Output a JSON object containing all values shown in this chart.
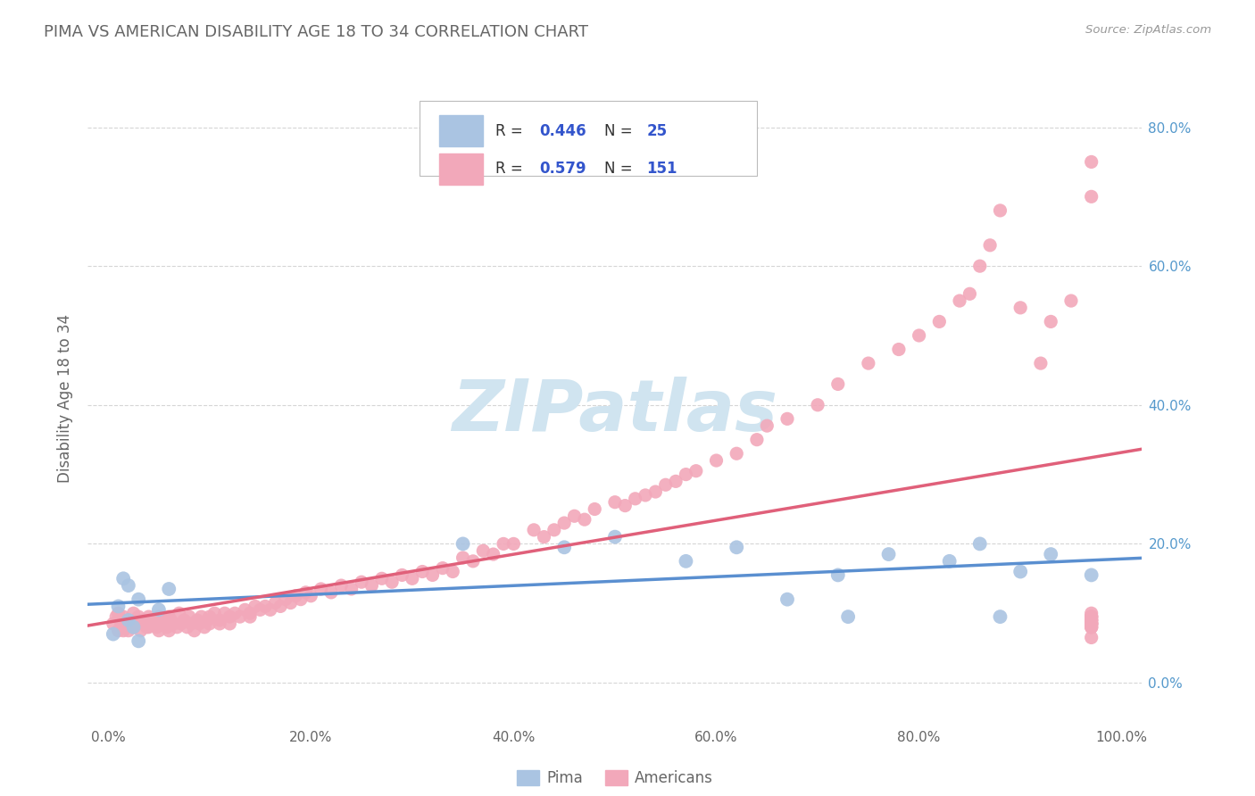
{
  "title": "PIMA VS AMERICAN DISABILITY AGE 18 TO 34 CORRELATION CHART",
  "source": "Source: ZipAtlas.com",
  "ylabel": "Disability Age 18 to 34",
  "xlim": [
    -0.02,
    1.02
  ],
  "ylim": [
    -0.06,
    0.88
  ],
  "ytick_vals": [
    0.0,
    0.2,
    0.4,
    0.6,
    0.8
  ],
  "xtick_vals": [
    0.0,
    0.2,
    0.4,
    0.6,
    0.8,
    1.0
  ],
  "pima_R": 0.446,
  "pima_N": 25,
  "american_R": 0.579,
  "american_N": 151,
  "pima_color": "#aac4e2",
  "american_color": "#f2a8ba",
  "pima_line_color": "#5a8fd0",
  "american_line_color": "#e0607a",
  "background_color": "#ffffff",
  "grid_color": "#cccccc",
  "title_color": "#666666",
  "label_color": "#666666",
  "right_tick_color": "#5599cc",
  "legend_text_color": "#333333",
  "legend_R_N_color": "#3355cc",
  "watermark": "ZIPatlas",
  "watermark_color": "#d0e4f0",
  "pima_x": [
    0.01,
    0.02,
    0.025,
    0.03,
    0.015,
    0.005,
    0.02,
    0.05,
    0.03,
    0.06,
    0.35,
    0.5,
    0.45,
    0.57,
    0.62,
    0.67,
    0.72,
    0.77,
    0.86,
    0.88,
    0.9,
    0.83,
    0.73,
    0.93,
    0.97
  ],
  "pima_y": [
    0.11,
    0.14,
    0.08,
    0.12,
    0.15,
    0.07,
    0.09,
    0.105,
    0.06,
    0.135,
    0.2,
    0.21,
    0.195,
    0.175,
    0.195,
    0.12,
    0.155,
    0.185,
    0.2,
    0.095,
    0.16,
    0.175,
    0.095,
    0.185,
    0.155
  ],
  "american_x": [
    0.005,
    0.008,
    0.01,
    0.01,
    0.012,
    0.013,
    0.015,
    0.015,
    0.018,
    0.02,
    0.02,
    0.022,
    0.025,
    0.025,
    0.028,
    0.03,
    0.03,
    0.032,
    0.035,
    0.035,
    0.038,
    0.04,
    0.04,
    0.042,
    0.045,
    0.048,
    0.05,
    0.05,
    0.052,
    0.055,
    0.055,
    0.058,
    0.06,
    0.06,
    0.062,
    0.065,
    0.068,
    0.07,
    0.072,
    0.075,
    0.078,
    0.08,
    0.082,
    0.085,
    0.088,
    0.09,
    0.092,
    0.095,
    0.098,
    0.1,
    0.1,
    0.105,
    0.11,
    0.11,
    0.115,
    0.12,
    0.12,
    0.125,
    0.13,
    0.135,
    0.14,
    0.14,
    0.145,
    0.15,
    0.155,
    0.16,
    0.165,
    0.17,
    0.175,
    0.18,
    0.185,
    0.19,
    0.195,
    0.2,
    0.21,
    0.22,
    0.23,
    0.24,
    0.25,
    0.26,
    0.27,
    0.28,
    0.29,
    0.3,
    0.31,
    0.32,
    0.33,
    0.34,
    0.35,
    0.36,
    0.37,
    0.38,
    0.39,
    0.4,
    0.42,
    0.43,
    0.44,
    0.45,
    0.46,
    0.47,
    0.48,
    0.5,
    0.51,
    0.52,
    0.53,
    0.54,
    0.55,
    0.56,
    0.57,
    0.58,
    0.6,
    0.62,
    0.64,
    0.65,
    0.67,
    0.7,
    0.72,
    0.75,
    0.78,
    0.8,
    0.82,
    0.84,
    0.85,
    0.86,
    0.87,
    0.88,
    0.9,
    0.92,
    0.93,
    0.95,
    0.97,
    0.97,
    0.97,
    0.97,
    0.97,
    0.97,
    0.97,
    0.97,
    0.97,
    0.97,
    0.97,
    0.97,
    0.97,
    0.97,
    0.97,
    0.97,
    0.97,
    0.97,
    0.97,
    0.97,
    0.97
  ],
  "american_y": [
    0.085,
    0.095,
    0.1,
    0.075,
    0.09,
    0.085,
    0.095,
    0.075,
    0.08,
    0.09,
    0.075,
    0.085,
    0.1,
    0.08,
    0.09,
    0.085,
    0.095,
    0.075,
    0.09,
    0.085,
    0.08,
    0.095,
    0.08,
    0.085,
    0.09,
    0.08,
    0.095,
    0.075,
    0.085,
    0.09,
    0.085,
    0.08,
    0.095,
    0.075,
    0.09,
    0.085,
    0.08,
    0.1,
    0.085,
    0.09,
    0.08,
    0.095,
    0.085,
    0.075,
    0.09,
    0.085,
    0.095,
    0.08,
    0.09,
    0.085,
    0.095,
    0.1,
    0.09,
    0.085,
    0.1,
    0.095,
    0.085,
    0.1,
    0.095,
    0.105,
    0.1,
    0.095,
    0.11,
    0.105,
    0.11,
    0.105,
    0.115,
    0.11,
    0.12,
    0.115,
    0.125,
    0.12,
    0.13,
    0.125,
    0.135,
    0.13,
    0.14,
    0.135,
    0.145,
    0.14,
    0.15,
    0.145,
    0.155,
    0.15,
    0.16,
    0.155,
    0.165,
    0.16,
    0.18,
    0.175,
    0.19,
    0.185,
    0.2,
    0.2,
    0.22,
    0.21,
    0.22,
    0.23,
    0.24,
    0.235,
    0.25,
    0.26,
    0.255,
    0.265,
    0.27,
    0.275,
    0.285,
    0.29,
    0.3,
    0.305,
    0.32,
    0.33,
    0.35,
    0.37,
    0.38,
    0.4,
    0.43,
    0.46,
    0.48,
    0.5,
    0.52,
    0.55,
    0.56,
    0.6,
    0.63,
    0.68,
    0.54,
    0.46,
    0.52,
    0.55,
    0.09,
    0.085,
    0.095,
    0.08,
    0.09,
    0.085,
    0.095,
    0.1,
    0.085,
    0.09,
    0.08,
    0.095,
    0.085,
    0.75,
    0.7,
    0.065,
    0.085,
    0.095,
    0.08,
    0.09,
    0.085
  ]
}
